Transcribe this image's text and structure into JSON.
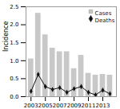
{
  "chart_data": {
    "type": "bar",
    "x": [
      2003,
      2004,
      2005,
      2006,
      2007,
      2008,
      2009,
      2010,
      2011,
      2012,
      2013,
      2014
    ],
    "series": [
      {
        "name": "Cases",
        "type": "bar",
        "color": "#c8c8c8",
        "values": [
          1.05,
          2.32,
          1.72,
          1.35,
          1.25,
          1.25,
          0.78,
          1.15,
          0.65,
          0.6,
          0.62,
          0.6
        ]
      },
      {
        "name": "Deaths",
        "type": "line",
        "color": "#111111",
        "marker": "diamond",
        "values": [
          0.15,
          0.62,
          0.28,
          0.2,
          0.25,
          0.12,
          0.22,
          0.28,
          0.12,
          0.05,
          0.18,
          0.08
        ]
      }
    ],
    "ylabel": "Incidence",
    "xlim": [
      2002.3,
      2014.9
    ],
    "xticks": [
      2003,
      2005,
      2007,
      2009,
      2011,
      2013
    ],
    "ylim": [
      0,
      2.5
    ],
    "yticks": [
      {
        "value": 0,
        "label": "0.0"
      },
      0.5,
      {
        "value": 1,
        "label": "1.0"
      },
      1.5,
      {
        "value": 2,
        "label": "2.0"
      },
      2.5
    ],
    "legend": "upper right"
  }
}
